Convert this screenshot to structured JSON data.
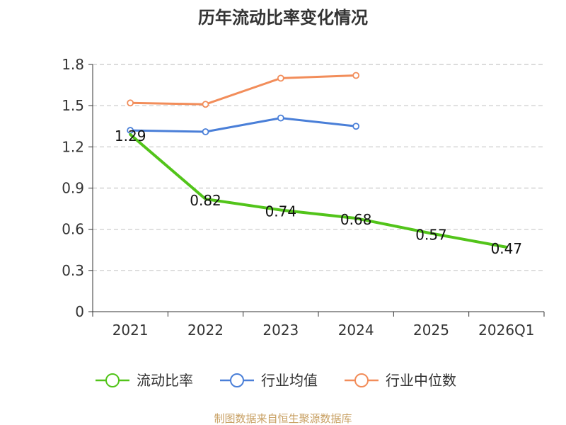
{
  "chart_data": {
    "type": "line",
    "title": "历年流动比率变化情况",
    "categories": [
      "2021",
      "2022",
      "2023",
      "2024",
      "2025",
      "2026Q1"
    ],
    "ylim": [
      0,
      1.8
    ],
    "yticks": [
      "0",
      "0.3",
      "0.6",
      "0.9",
      "1.2",
      "1.5",
      "1.8"
    ],
    "grid": true,
    "legend_position": "bottom",
    "series": [
      {
        "name": "流动比率",
        "color": "#52c41a",
        "values": [
          1.29,
          0.82,
          0.74,
          0.68,
          0.57,
          0.47
        ],
        "labels": [
          "1.29",
          "0.82",
          "0.74",
          "0.68",
          "0.57",
          "0.47"
        ]
      },
      {
        "name": "行业均值",
        "color": "#4a7fd8",
        "values": [
          1.32,
          1.31,
          1.41,
          1.35,
          null,
          null
        ]
      },
      {
        "name": "行业中位数",
        "color": "#f28d5a",
        "values": [
          1.52,
          1.51,
          1.7,
          1.72,
          null,
          null
        ]
      }
    ],
    "source": "制图数据来自恒生聚源数据库"
  }
}
